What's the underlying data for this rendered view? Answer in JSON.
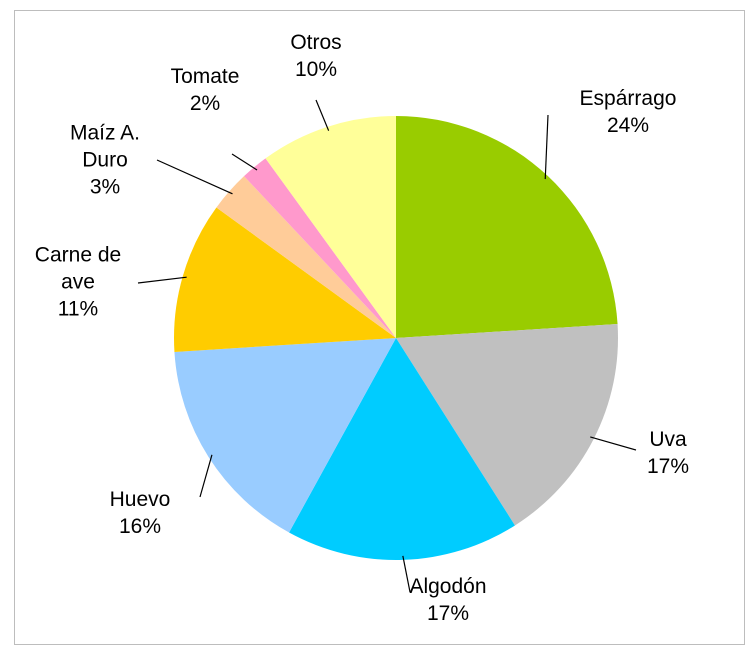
{
  "chart_data": {
    "type": "pie",
    "categories": [
      "Espárrago",
      "Uva",
      "Algodón",
      "Huevo",
      "Carne de ave",
      "Maíz A. Duro",
      "Tomate",
      "Otros"
    ],
    "values": [
      24,
      17,
      17,
      16,
      11,
      3,
      2,
      10
    ],
    "value_labels": [
      "24%",
      "17%",
      "17%",
      "16%",
      "11%",
      "3%",
      "2%",
      "10%"
    ],
    "colors": [
      "#99cc00",
      "#c0c0c0",
      "#00ccff",
      "#99ccff",
      "#ffcc00",
      "#ffcc99",
      "#ff99cc",
      "#ffff99"
    ]
  }
}
